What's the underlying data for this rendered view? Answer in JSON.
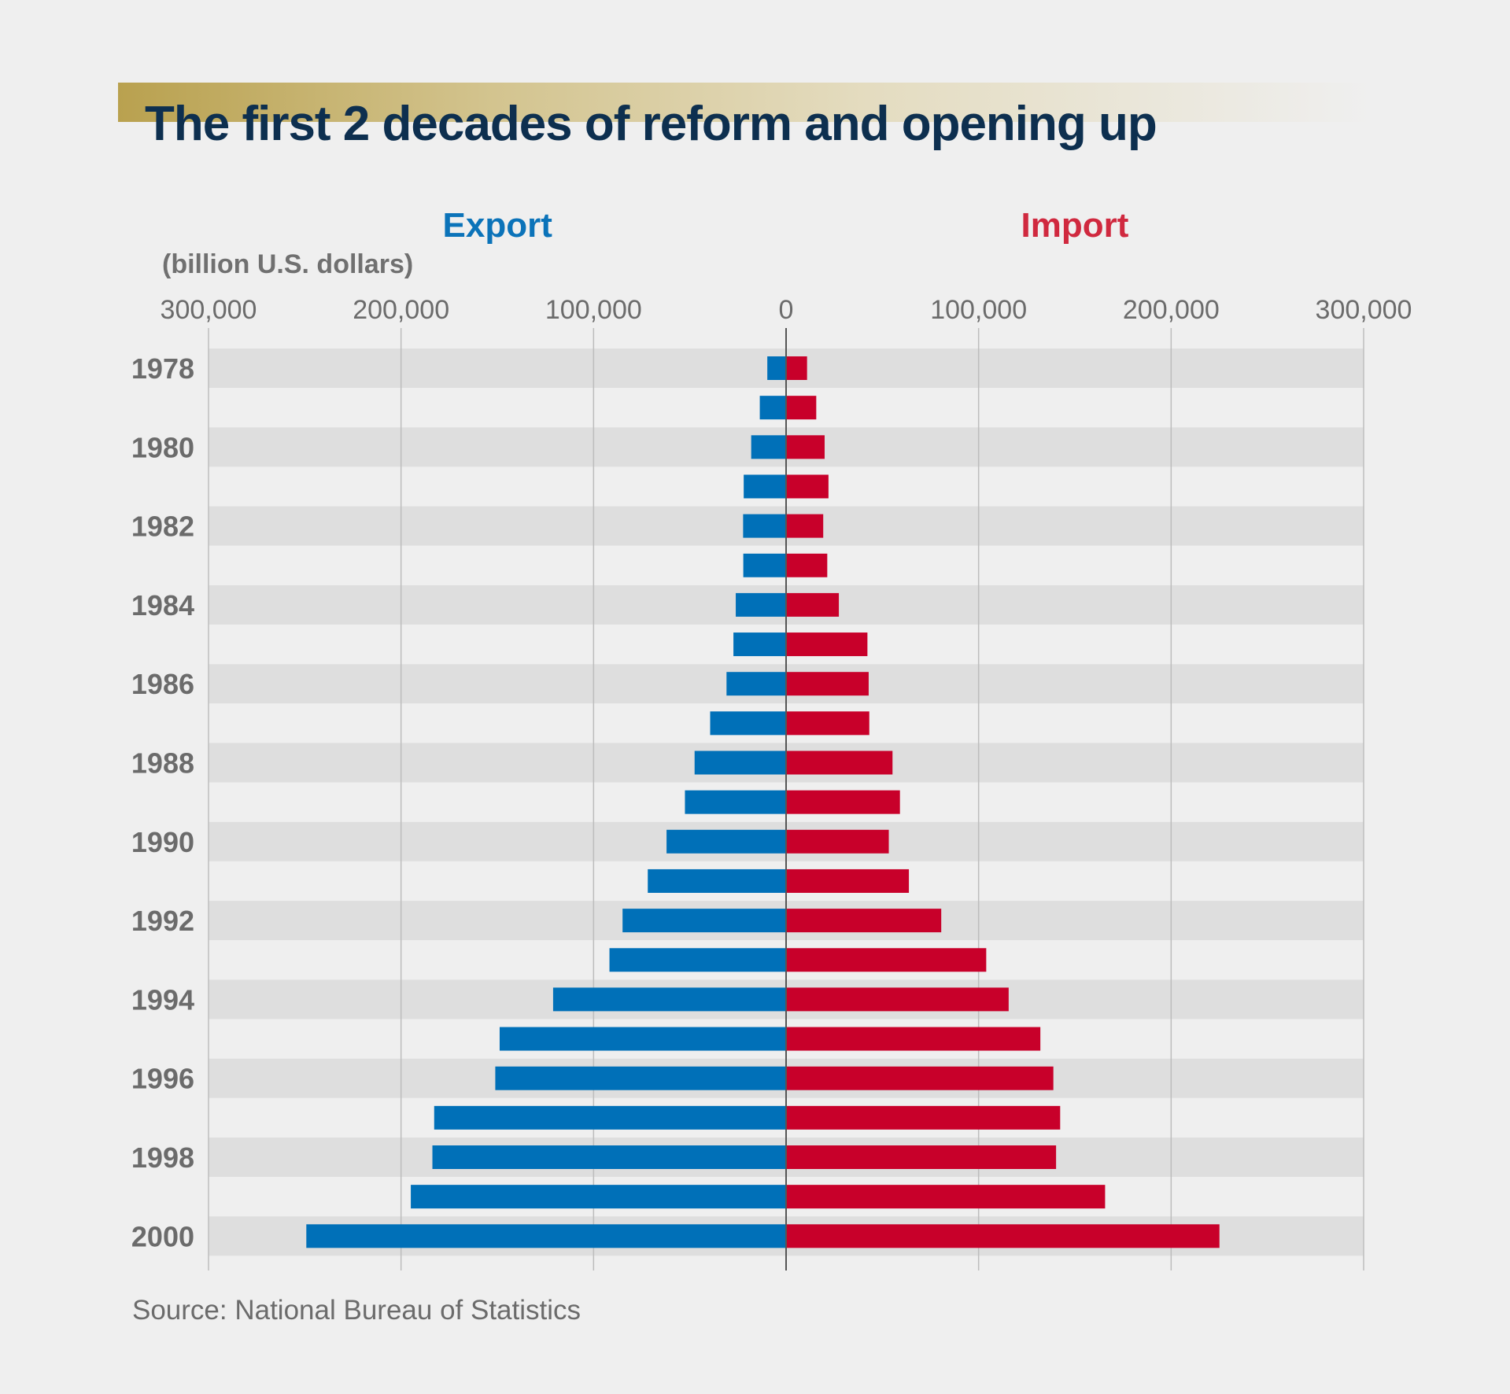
{
  "title": "The first 2 decades of reform and opening up",
  "export_label": "Export",
  "import_label": "Import",
  "unit_label": "(billion U.S. dollars)",
  "source": "Source: National Bureau of Statistics",
  "colors": {
    "export": "#0070b8",
    "import": "#c8002a",
    "export_label": "#0b73b9",
    "import_label": "#d0293f",
    "title": "#0d2f4f",
    "band": "#dedede"
  },
  "chart_data": {
    "type": "bar",
    "orientation": "horizontal-diverging",
    "xlim": [
      -300000,
      300000
    ],
    "x_ticks": [
      -300000,
      -200000,
      -100000,
      0,
      100000,
      200000,
      300000
    ],
    "x_tick_labels": [
      "300,000",
      "200,000",
      "100,000",
      "0",
      "100,000",
      "200,000",
      "300,000"
    ],
    "categories": [
      "1978",
      "1979",
      "1980",
      "1981",
      "1982",
      "1983",
      "1984",
      "1985",
      "1986",
      "1987",
      "1988",
      "1989",
      "1990",
      "1991",
      "1992",
      "1993",
      "1994",
      "1995",
      "1996",
      "1997",
      "1998",
      "1999",
      "2000"
    ],
    "category_labels": [
      "1978",
      "",
      "1980",
      "",
      "1982",
      "",
      "1984",
      "",
      "1986",
      "",
      "1988",
      "",
      "1990",
      "",
      "1992",
      "",
      "1994",
      "",
      "1996",
      "",
      "1998",
      "",
      "2000"
    ],
    "grid": true,
    "series": [
      {
        "name": "Export",
        "values": [
          9750,
          13660,
          18120,
          22010,
          22320,
          22230,
          26140,
          27350,
          30940,
          39440,
          47520,
          52540,
          62090,
          71840,
          84940,
          91740,
          121010,
          148780,
          151050,
          182790,
          183710,
          194930,
          249200
        ]
      },
      {
        "name": "Import",
        "values": [
          10890,
          15670,
          20020,
          22020,
          19290,
          21390,
          27410,
          42250,
          42900,
          43220,
          55280,
          59140,
          53350,
          63790,
          80590,
          103960,
          115610,
          132080,
          138830,
          142370,
          140240,
          165700,
          225100
        ]
      }
    ]
  }
}
